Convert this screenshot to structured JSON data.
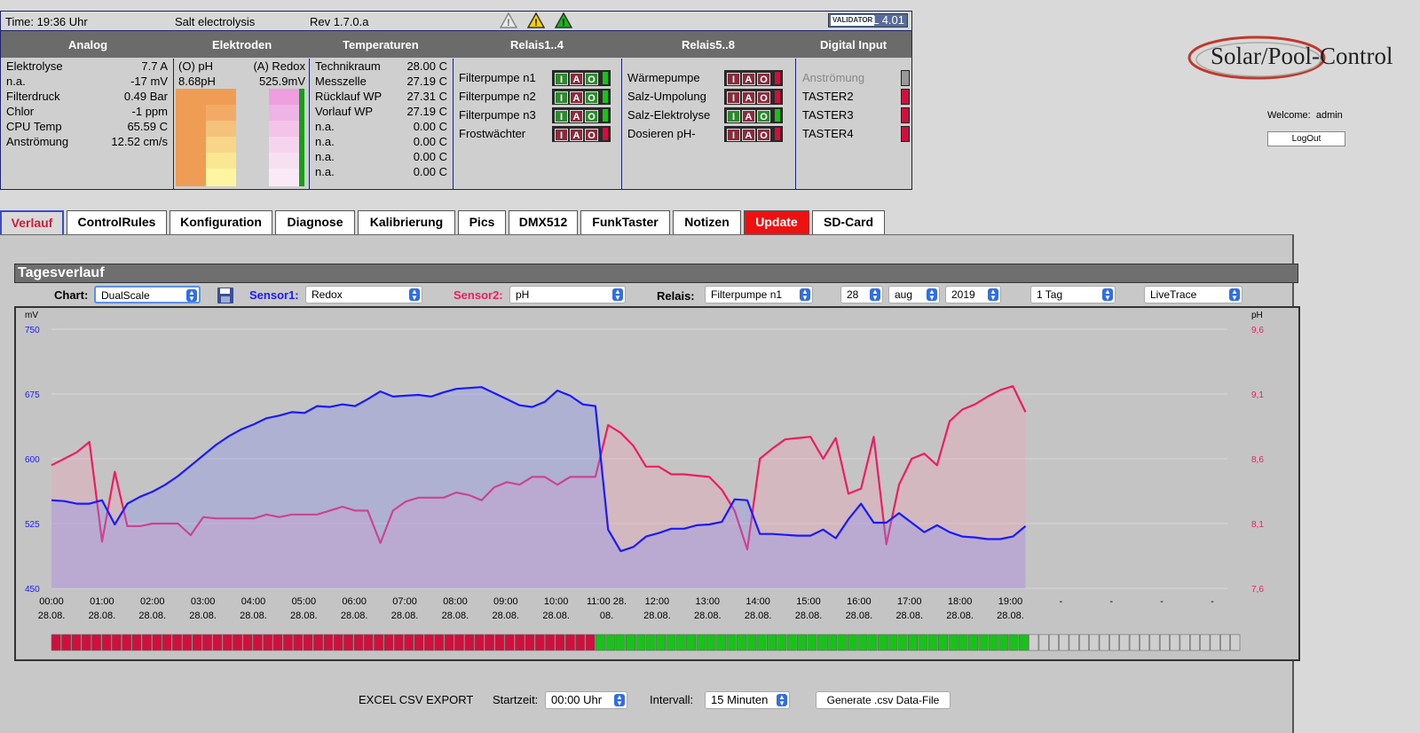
{
  "status": {
    "time": "Time: 19:36 Uhr",
    "mode": "Salt electrolysis",
    "rev": "Rev 1.7.0.a",
    "validator": "HTML 4.01",
    "validator_brand": "VALIDATOR"
  },
  "headers": [
    "Analog",
    "Elektroden",
    "Temperaturen",
    "Relais1..4",
    "Relais5..8",
    "Digital Input"
  ],
  "analog": [
    {
      "label": "Elektrolyse",
      "value": "7.7 A"
    },
    {
      "label": "n.a.",
      "value": "-17 mV"
    },
    {
      "label": "Filterdruck",
      "value": "0.49 Bar"
    },
    {
      "label": "Chlor",
      "value": "-1 ppm"
    },
    {
      "label": "CPU Temp",
      "value": "65.59 C"
    },
    {
      "label": "Anströmung",
      "value": "12.52 cm/s"
    }
  ],
  "electrodes": {
    "ph_label": "(O) pH",
    "redox_label": "(A) Redox",
    "ph_value": "8.68pH",
    "redox_value": "525.9mV"
  },
  "temperatures": [
    {
      "label": "Technikraum",
      "value": "28.00 C"
    },
    {
      "label": "Messzelle",
      "value": "27.19 C"
    },
    {
      "label": "Rücklauf WP",
      "value": "27.31 C"
    },
    {
      "label": "Vorlauf WP",
      "value": "27.19 C"
    },
    {
      "label": "n.a.",
      "value": "0.00 C"
    },
    {
      "label": "n.a.",
      "value": "0.00 C"
    },
    {
      "label": "n.a.",
      "value": "0.00 C"
    },
    {
      "label": "n.a.",
      "value": "0.00 C"
    }
  ],
  "relais1_4": [
    {
      "label": "Filterpumpe n1",
      "state": "on"
    },
    {
      "label": "Filterpumpe n2",
      "state": "on"
    },
    {
      "label": "Filterpumpe n3",
      "state": "on"
    },
    {
      "label": "Frostwächter",
      "state": "off"
    }
  ],
  "relais5_8": [
    {
      "label": "Wärmepumpe",
      "state": "off"
    },
    {
      "label": "Salz-Umpolung",
      "state": "off"
    },
    {
      "label": "Salz-Elektrolyse",
      "state": "on"
    },
    {
      "label": "Dosieren pH-",
      "state": "off"
    }
  ],
  "iao": {
    "i": "I",
    "a": "A",
    "o": "O"
  },
  "digital_inputs": [
    {
      "label": "Anströmung",
      "state": "disabled"
    },
    {
      "label": "TASTER2",
      "state": "off"
    },
    {
      "label": "TASTER3",
      "state": "off"
    },
    {
      "label": "TASTER4",
      "state": "off"
    }
  ],
  "logo_text": "Solar/Pool-Control",
  "welcome": {
    "label": "Welcome:",
    "user": "admin"
  },
  "logout_label": "LogOut",
  "tabs": [
    "Verlauf",
    "ControlRules",
    "Konfiguration",
    "Diagnose",
    "Kalibrierung",
    "Pics",
    "DMX512",
    "FunkTaster",
    "Notizen",
    "Update",
    "SD-Card"
  ],
  "section_title": "Tagesverlauf",
  "controls": {
    "chart_label": "Chart:",
    "chart_value": "DualScale",
    "sensor1_label": "Sensor1:",
    "sensor1_value": "Redox",
    "sensor2_label": "Sensor2:",
    "sensor2_value": "pH",
    "relais_label": "Relais:",
    "relais_value": "Filterpumpe n1",
    "day": "28",
    "month": "aug",
    "year": "2019",
    "range": "1 Tag",
    "mode": "LiveTrace"
  },
  "colors": {
    "sensor1": "#1a1aff",
    "sensor2": "#ee1c63",
    "relay_on": "#19c219",
    "relay_off": "#d0103c",
    "relay_none": "#cfcfcf"
  },
  "chart_data": {
    "type": "line",
    "left_unit": "mV",
    "right_unit": "pH",
    "left_ticks": [
      "750",
      "675",
      "600",
      "525",
      "450"
    ],
    "right_ticks": [
      "9,6",
      "9,1",
      "8,6",
      "8,1",
      "7,6"
    ],
    "ylim_left": [
      450,
      750
    ],
    "ylim_right": [
      7.6,
      9.6
    ],
    "x_ticks": [
      {
        "time": "00:00",
        "date": "28.08."
      },
      {
        "time": "01:00",
        "date": "28.08."
      },
      {
        "time": "02:00",
        "date": "28.08."
      },
      {
        "time": "03:00",
        "date": "28.08."
      },
      {
        "time": "04:00",
        "date": "28.08."
      },
      {
        "time": "05:00",
        "date": "28.08."
      },
      {
        "time": "06:00",
        "date": "28.08."
      },
      {
        "time": "07:00",
        "date": "28.08."
      },
      {
        "time": "08:00",
        "date": "28.08."
      },
      {
        "time": "09:00",
        "date": "28.08."
      },
      {
        "time": "10:00",
        "date": "28.08."
      },
      {
        "time": "11:00 28.",
        "date": "08."
      },
      {
        "time": "12:00",
        "date": "28.08."
      },
      {
        "time": "13:00",
        "date": "28.08."
      },
      {
        "time": "14:00",
        "date": "28.08."
      },
      {
        "time": "15:00",
        "date": "28.08."
      },
      {
        "time": "16:00",
        "date": "28.08."
      },
      {
        "time": "17:00",
        "date": "28.08."
      },
      {
        "time": "18:00",
        "date": "28.08."
      },
      {
        "time": "19:00",
        "date": "28.08."
      },
      {
        "time": "-",
        "date": ""
      },
      {
        "time": "-",
        "date": ""
      },
      {
        "time": "-",
        "date": ""
      },
      {
        "time": "-",
        "date": ""
      }
    ],
    "series": [
      {
        "name": "Redox",
        "axis": "left",
        "values": [
          552,
          551,
          548,
          548,
          552,
          524,
          548,
          556,
          562,
          570,
          580,
          592,
          604,
          616,
          626,
          634,
          640,
          647,
          650,
          654,
          653,
          661,
          660,
          663,
          661,
          669,
          678,
          672,
          673,
          674,
          672,
          677,
          681,
          682,
          683,
          676,
          669,
          662,
          660,
          666,
          679,
          673,
          663,
          661,
          518,
          493,
          498,
          510,
          514,
          519,
          519,
          523,
          524,
          527,
          553,
          552,
          513,
          513,
          512,
          511,
          511,
          518,
          508,
          530,
          548,
          526,
          526,
          537,
          526,
          515,
          523,
          515,
          510,
          509,
          507,
          507,
          510,
          522
        ]
      },
      {
        "name": "pH",
        "axis": "right",
        "values": [
          8.55,
          8.6,
          8.65,
          8.73,
          7.96,
          8.5,
          8.08,
          8.08,
          8.1,
          8.1,
          8.1,
          8.01,
          8.15,
          8.14,
          8.14,
          8.14,
          8.14,
          8.17,
          8.15,
          8.17,
          8.17,
          8.17,
          8.2,
          8.23,
          8.2,
          8.2,
          7.95,
          8.2,
          8.27,
          8.3,
          8.3,
          8.3,
          8.34,
          8.32,
          8.28,
          8.38,
          8.42,
          8.4,
          8.46,
          8.46,
          8.4,
          8.46,
          8.46,
          8.46,
          8.86,
          8.8,
          8.7,
          8.54,
          8.54,
          8.48,
          8.48,
          8.47,
          8.46,
          8.36,
          8.2,
          7.9,
          8.6,
          8.68,
          8.75,
          8.76,
          8.77,
          8.6,
          8.76,
          8.33,
          8.37,
          8.77,
          7.94,
          8.4,
          8.6,
          8.64,
          8.55,
          8.89,
          8.98,
          9.02,
          9.08,
          9.13,
          9.16,
          8.96
        ]
      }
    ],
    "relay_segments": {
      "off": 54,
      "on": 43,
      "none": 21
    }
  },
  "export": {
    "title": "EXCEL CSV EXPORT",
    "start_label": "Startzeit:",
    "start_value": "00:00 Uhr",
    "interval_label": "Intervall:",
    "interval_value": "15 Minuten",
    "button": "Generate .csv Data-File"
  }
}
